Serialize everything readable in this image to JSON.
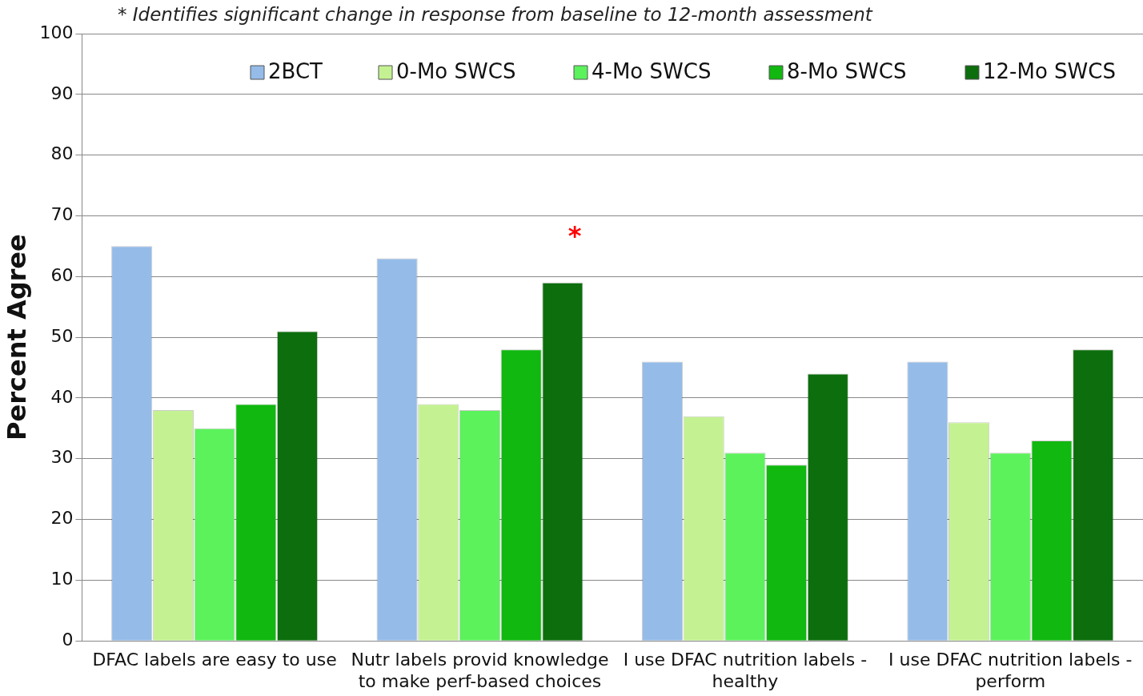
{
  "chart_data": {
    "type": "bar",
    "ylabel": "Percent Agree",
    "categories": [
      "DFAC labels are easy to use",
      "Nutr labels provid knowledge to make perf-based choices",
      "I use DFAC nutrition labels - healthy",
      "I use DFAC nutrition labels - perform"
    ],
    "series": [
      {
        "name": "2BCT",
        "color": "#95bbe8",
        "values": [
          65,
          63,
          46,
          46
        ]
      },
      {
        "name": "0-Mo SWCS",
        "color": "#c4f292",
        "values": [
          38,
          39,
          37,
          36
        ]
      },
      {
        "name": "4-Mo SWCS",
        "color": "#5cf25c",
        "values": [
          35,
          38,
          31,
          31
        ]
      },
      {
        "name": "8-Mo SWCS",
        "color": "#10b810",
        "values": [
          39,
          48,
          29,
          33
        ]
      },
      {
        "name": "12-Mo SWCS",
        "color": "#0c6e0c",
        "values": [
          51,
          59,
          44,
          48
        ]
      }
    ],
    "ylim": [
      0,
      100
    ],
    "yticks": [
      0,
      10,
      20,
      30,
      40,
      50,
      60,
      70,
      80,
      90,
      100
    ],
    "grid": "y",
    "legend": "top",
    "annotations": [
      "* Identifies significant change in response from baseline to 12-month assessment",
      "*"
    ]
  }
}
